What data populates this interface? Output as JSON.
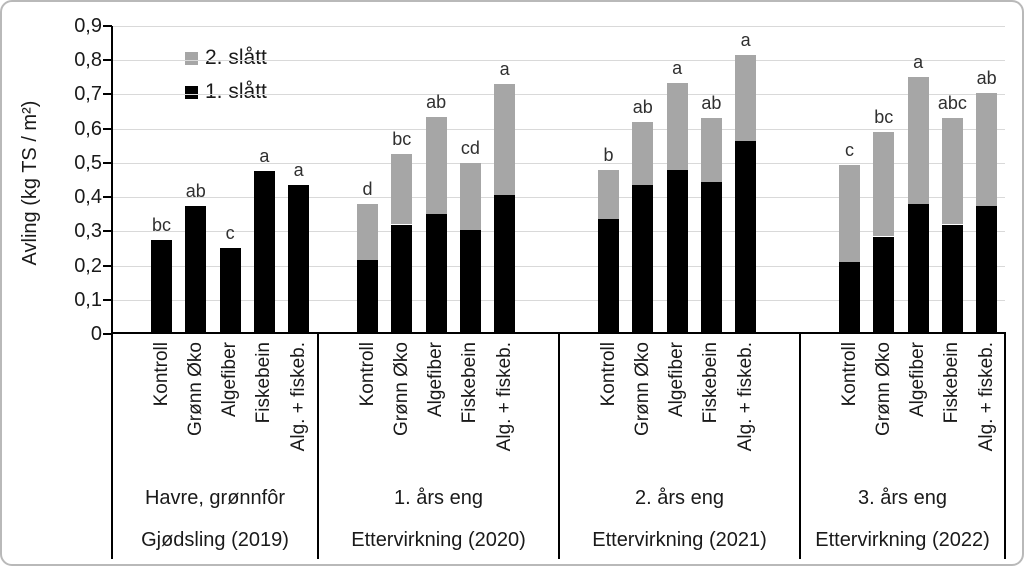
{
  "chart_data": {
    "type": "bar",
    "stacked": true,
    "ylabel": "Avling (kg TS / m²)",
    "ylim": [
      0,
      0.9
    ],
    "ytick_step": 0.1,
    "yticks": [
      "0",
      "0,1",
      "0,2",
      "0,3",
      "0,4",
      "0,5",
      "0,6",
      "0,7",
      "0,8",
      "0,9"
    ],
    "grid": true,
    "legend_position": "top-left-inside",
    "legend": [
      {
        "label": "2. slått",
        "color": "#A6A6A6"
      },
      {
        "label": "1. slått",
        "color": "#000000"
      }
    ],
    "groups": [
      {
        "label": "Havre, grønnfôr",
        "sublabel": "Gjødsling (2019)",
        "bars": [
          {
            "treatment": "Kontroll",
            "slatt1": 0.275,
            "slatt2": 0,
            "letter": "bc"
          },
          {
            "treatment": "Grønn Øko",
            "slatt1": 0.375,
            "slatt2": 0,
            "letter": "ab"
          },
          {
            "treatment": "Algefiber",
            "slatt1": 0.25,
            "slatt2": 0,
            "letter": "c"
          },
          {
            "treatment": "Fiskebein",
            "slatt1": 0.475,
            "slatt2": 0,
            "letter": "a"
          },
          {
            "treatment": "Alg. + fiskeb.",
            "slatt1": 0.435,
            "slatt2": 0,
            "letter": "a"
          }
        ]
      },
      {
        "label": "1. års eng",
        "sublabel": "Ettervirkning (2020)",
        "bars": [
          {
            "treatment": "Kontroll",
            "slatt1": 0.215,
            "slatt2": 0.165,
            "letter": "d"
          },
          {
            "treatment": "Grønn Øko",
            "slatt1": 0.32,
            "slatt2": 0.205,
            "letter": "bc"
          },
          {
            "treatment": "Algefiber",
            "slatt1": 0.35,
            "slatt2": 0.285,
            "letter": "ab"
          },
          {
            "treatment": "Fiskebein",
            "slatt1": 0.305,
            "slatt2": 0.195,
            "letter": "cd"
          },
          {
            "treatment": "Alg. + fiskeb.",
            "slatt1": 0.405,
            "slatt2": 0.325,
            "letter": "a"
          }
        ]
      },
      {
        "label": "2. års eng",
        "sublabel": "Ettervirkning (2021)",
        "bars": [
          {
            "treatment": "Kontroll",
            "slatt1": 0.335,
            "slatt2": 0.145,
            "letter": "b"
          },
          {
            "treatment": "Grønn Øko",
            "slatt1": 0.435,
            "slatt2": 0.185,
            "letter": "ab"
          },
          {
            "treatment": "Algefiber",
            "slatt1": 0.48,
            "slatt2": 0.255,
            "letter": "a"
          },
          {
            "treatment": "Fiskebein",
            "slatt1": 0.445,
            "slatt2": 0.185,
            "letter": "ab"
          },
          {
            "treatment": "Alg. + fiskeb.",
            "slatt1": 0.565,
            "slatt2": 0.25,
            "letter": "a"
          }
        ]
      },
      {
        "label": "3. års eng",
        "sublabel": "Ettervirkning (2022)",
        "bars": [
          {
            "treatment": "Kontroll",
            "slatt1": 0.21,
            "slatt2": 0.285,
            "letter": "c"
          },
          {
            "treatment": "Grønn Øko",
            "slatt1": 0.285,
            "slatt2": 0.305,
            "letter": "bc"
          },
          {
            "treatment": "Algefiber",
            "slatt1": 0.38,
            "slatt2": 0.37,
            "letter": "a"
          },
          {
            "treatment": "Fiskebein",
            "slatt1": 0.32,
            "slatt2": 0.31,
            "letter": "abc"
          },
          {
            "treatment": "Alg. + fiskeb.",
            "slatt1": 0.375,
            "slatt2": 0.33,
            "letter": "ab"
          }
        ]
      }
    ],
    "colors": {
      "slatt1": "#000000",
      "slatt2": "#A6A6A6",
      "gridline": "#D9D9D9",
      "axis": "#000000",
      "significance_letter": "#303030",
      "frame_border": "#B9B9B9"
    }
  }
}
